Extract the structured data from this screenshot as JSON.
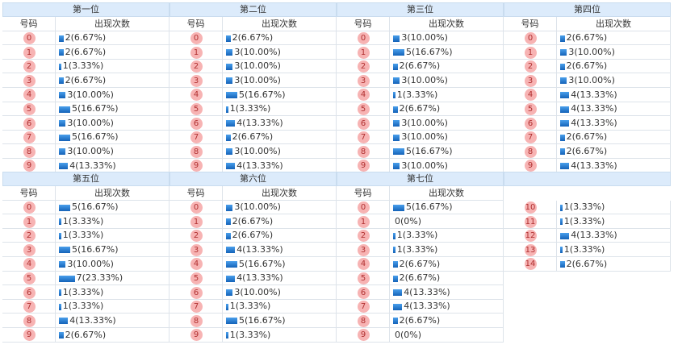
{
  "sections": [
    {
      "title": "第一位",
      "columns": [
        "号码",
        "出现次数"
      ],
      "rows": [
        {
          "number": "0",
          "value": 2,
          "label": "2(6.67%)"
        },
        {
          "number": "1",
          "value": 2,
          "label": "2(6.67%)"
        },
        {
          "number": "2",
          "value": 1,
          "label": "1(3.33%)"
        },
        {
          "number": "3",
          "value": 2,
          "label": "2(6.67%)"
        },
        {
          "number": "4",
          "value": 3,
          "label": "3(10.00%)"
        },
        {
          "number": "5",
          "value": 5,
          "label": "5(16.67%)"
        },
        {
          "number": "6",
          "value": 3,
          "label": "3(10.00%)"
        },
        {
          "number": "7",
          "value": 5,
          "label": "5(16.67%)"
        },
        {
          "number": "8",
          "value": 3,
          "label": "3(10.00%)"
        },
        {
          "number": "9",
          "value": 4,
          "label": "4(13.33%)"
        }
      ]
    },
    {
      "title": "第二位",
      "columns": [
        "号码",
        "出现次数"
      ],
      "rows": [
        {
          "number": "0",
          "value": 2,
          "label": "2(6.67%)"
        },
        {
          "number": "1",
          "value": 3,
          "label": "3(10.00%)"
        },
        {
          "number": "2",
          "value": 3,
          "label": "3(10.00%)"
        },
        {
          "number": "3",
          "value": 3,
          "label": "3(10.00%)"
        },
        {
          "number": "4",
          "value": 5,
          "label": "5(16.67%)"
        },
        {
          "number": "5",
          "value": 1,
          "label": "1(3.33%)"
        },
        {
          "number": "6",
          "value": 4,
          "label": "4(13.33%)"
        },
        {
          "number": "7",
          "value": 2,
          "label": "2(6.67%)"
        },
        {
          "number": "8",
          "value": 3,
          "label": "3(10.00%)"
        },
        {
          "number": "9",
          "value": 4,
          "label": "4(13.33%)"
        }
      ]
    },
    {
      "title": "第三位",
      "columns": [
        "号码",
        "出现次数"
      ],
      "rows": [
        {
          "number": "0",
          "value": 3,
          "label": "3(10.00%)"
        },
        {
          "number": "1",
          "value": 5,
          "label": "5(16.67%)"
        },
        {
          "number": "2",
          "value": 2,
          "label": "2(6.67%)"
        },
        {
          "number": "3",
          "value": 3,
          "label": "3(10.00%)"
        },
        {
          "number": "4",
          "value": 1,
          "label": "1(3.33%)"
        },
        {
          "number": "5",
          "value": 2,
          "label": "2(6.67%)"
        },
        {
          "number": "6",
          "value": 3,
          "label": "3(10.00%)"
        },
        {
          "number": "7",
          "value": 3,
          "label": "3(10.00%)"
        },
        {
          "number": "8",
          "value": 5,
          "label": "5(16.67%)"
        },
        {
          "number": "9",
          "value": 3,
          "label": "3(10.00%)"
        }
      ]
    },
    {
      "title": "第四位",
      "columns": [
        "号码",
        "出现次数"
      ],
      "rows": [
        {
          "number": "0",
          "value": 2,
          "label": "2(6.67%)"
        },
        {
          "number": "1",
          "value": 3,
          "label": "3(10.00%)"
        },
        {
          "number": "2",
          "value": 2,
          "label": "2(6.67%)"
        },
        {
          "number": "3",
          "value": 3,
          "label": "3(10.00%)"
        },
        {
          "number": "4",
          "value": 4,
          "label": "4(13.33%)"
        },
        {
          "number": "5",
          "value": 4,
          "label": "4(13.33%)"
        },
        {
          "number": "6",
          "value": 4,
          "label": "4(13.33%)"
        },
        {
          "number": "7",
          "value": 2,
          "label": "2(6.67%)"
        },
        {
          "number": "8",
          "value": 2,
          "label": "2(6.67%)"
        },
        {
          "number": "9",
          "value": 4,
          "label": "4(13.33%)"
        }
      ]
    },
    {
      "title": "第五位",
      "columns": [
        "号码",
        "出现次数"
      ],
      "rows": [
        {
          "number": "0",
          "value": 5,
          "label": "5(16.67%)"
        },
        {
          "number": "1",
          "value": 1,
          "label": "1(3.33%)"
        },
        {
          "number": "2",
          "value": 1,
          "label": "1(3.33%)"
        },
        {
          "number": "3",
          "value": 5,
          "label": "5(16.67%)"
        },
        {
          "number": "4",
          "value": 3,
          "label": "3(10.00%)"
        },
        {
          "number": "5",
          "value": 7,
          "label": "7(23.33%)"
        },
        {
          "number": "6",
          "value": 1,
          "label": "1(3.33%)"
        },
        {
          "number": "7",
          "value": 1,
          "label": "1(3.33%)"
        },
        {
          "number": "8",
          "value": 4,
          "label": "4(13.33%)"
        },
        {
          "number": "9",
          "value": 2,
          "label": "2(6.67%)"
        }
      ]
    },
    {
      "title": "第六位",
      "columns": [
        "号码",
        "出现次数"
      ],
      "rows": [
        {
          "number": "0",
          "value": 3,
          "label": "3(10.00%)"
        },
        {
          "number": "1",
          "value": 2,
          "label": "2(6.67%)"
        },
        {
          "number": "2",
          "value": 2,
          "label": "2(6.67%)"
        },
        {
          "number": "3",
          "value": 4,
          "label": "4(13.33%)"
        },
        {
          "number": "4",
          "value": 5,
          "label": "5(16.67%)"
        },
        {
          "number": "5",
          "value": 4,
          "label": "4(13.33%)"
        },
        {
          "number": "6",
          "value": 3,
          "label": "3(10.00%)"
        },
        {
          "number": "7",
          "value": 1,
          "label": "1(3.33%)"
        },
        {
          "number": "8",
          "value": 5,
          "label": "5(16.67%)"
        },
        {
          "number": "9",
          "value": 1,
          "label": "1(3.33%)"
        }
      ]
    },
    {
      "title": "第七位",
      "columns": [
        "号码",
        "出现次数"
      ],
      "rows": [
        {
          "number": "0",
          "value": 5,
          "label": "5(16.67%)"
        },
        {
          "number": "1",
          "value": 0,
          "label": "0(0%)"
        },
        {
          "number": "2",
          "value": 1,
          "label": "1(3.33%)"
        },
        {
          "number": "3",
          "value": 1,
          "label": "1(3.33%)"
        },
        {
          "number": "4",
          "value": 2,
          "label": "2(6.67%)"
        },
        {
          "number": "5",
          "value": 2,
          "label": "2(6.67%)"
        },
        {
          "number": "6",
          "value": 4,
          "label": "4(13.33%)"
        },
        {
          "number": "7",
          "value": 4,
          "label": "4(13.33%)"
        },
        {
          "number": "8",
          "value": 2,
          "label": "2(6.67%)"
        },
        {
          "number": "9",
          "value": 0,
          "label": "0(0%)"
        }
      ]
    },
    {
      "rows": [
        {
          "number": "10",
          "value": 1,
          "label": "1(3.33%)"
        },
        {
          "number": "11",
          "value": 1,
          "label": "1(3.33%)"
        },
        {
          "number": "12",
          "value": 4,
          "label": "4(13.33%)"
        },
        {
          "number": "13",
          "value": 1,
          "label": "1(3.33%)"
        },
        {
          "number": "14",
          "value": 2,
          "label": "2(6.67%)"
        }
      ]
    }
  ]
}
